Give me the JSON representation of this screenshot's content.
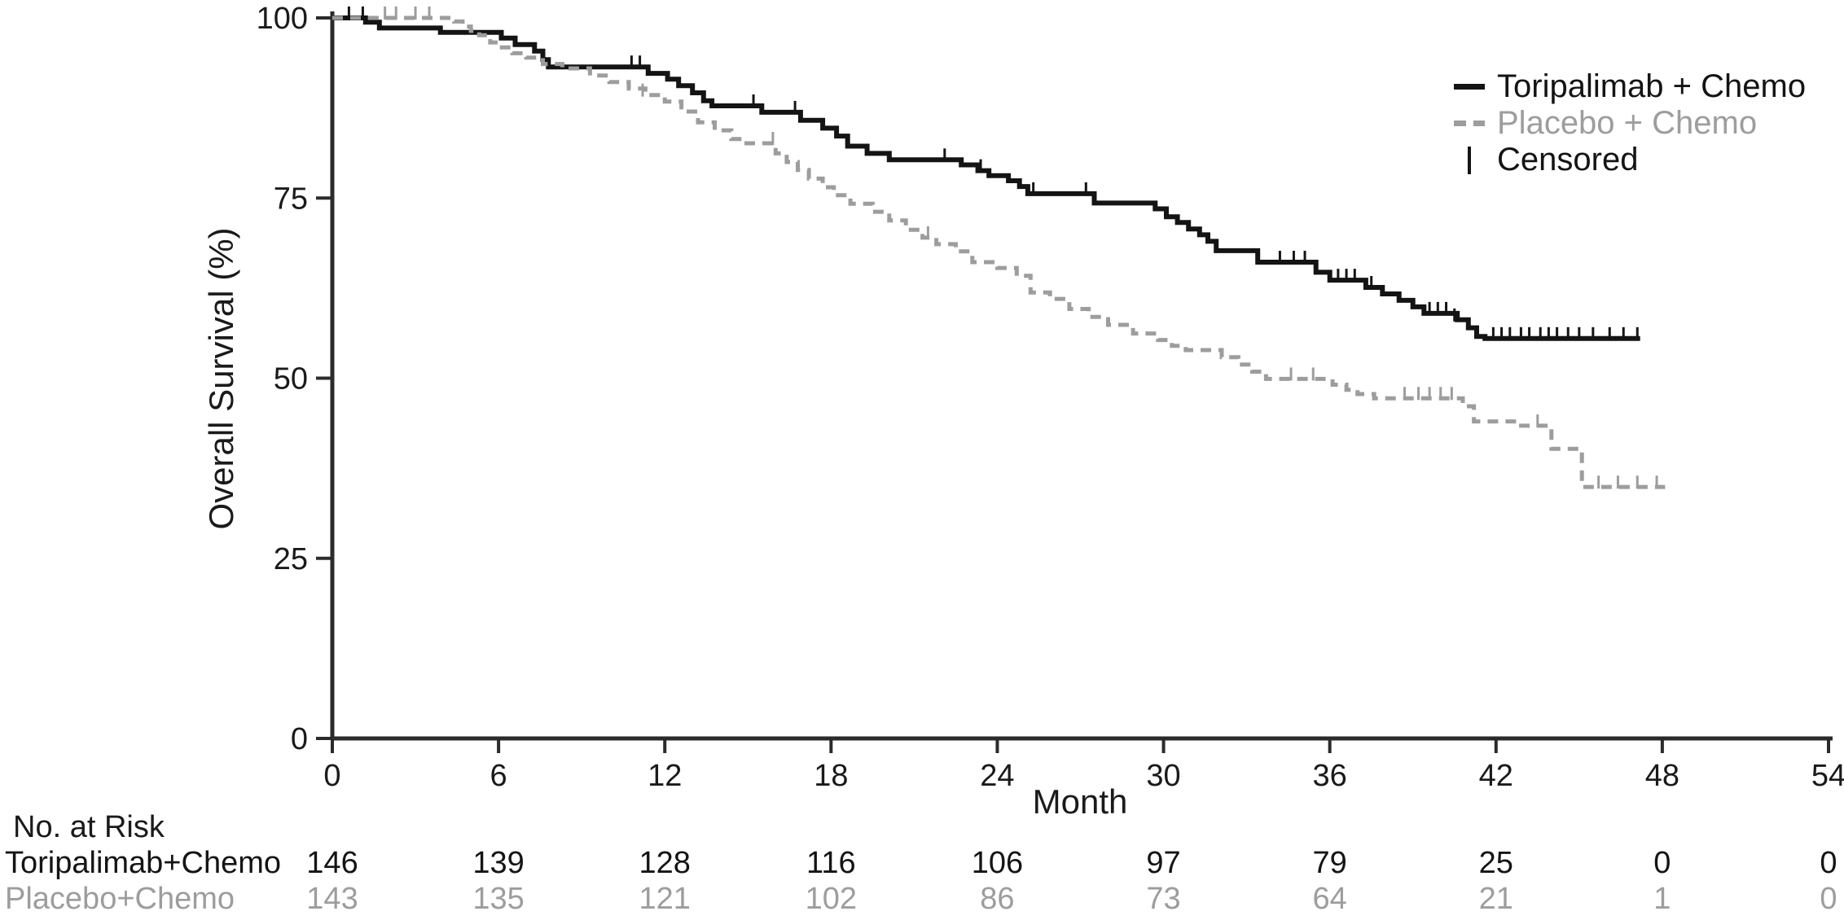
{
  "figure": {
    "xlabel": "Month",
    "ylabel": "Overall Survival (%)"
  },
  "legend": {
    "items": [
      {
        "label": "Toripalimab + Chemo",
        "style": "solid",
        "color": "#141414"
      },
      {
        "label": "Placebo + Chemo",
        "style": "dashed",
        "color": "#9d9d9d"
      },
      {
        "label": "Censored",
        "style": "censor-tick",
        "color": "#141414"
      }
    ]
  },
  "chart_data": {
    "type": "line",
    "subtype": "kaplan-meier-step",
    "title": "",
    "xlabel": "Month",
    "ylabel": "Overall Survival (%)",
    "xlim": [
      0,
      54
    ],
    "ylim": [
      0,
      100
    ],
    "xticks": [
      0,
      6,
      12,
      18,
      24,
      30,
      36,
      42,
      48,
      54
    ],
    "yticks": [
      0,
      25,
      50,
      75,
      100
    ],
    "grid": false,
    "legend_position": "top-right",
    "axis_color": "#2b2b2b",
    "series": [
      {
        "name": "Toripalimab + Chemo",
        "color": "#141414",
        "line_style": "solid",
        "step_points": [
          [
            0,
            100
          ],
          [
            1.2,
            99.4
          ],
          [
            1.7,
            98.6
          ],
          [
            3.9,
            98.0
          ],
          [
            6.1,
            97.2
          ],
          [
            6.6,
            96.3
          ],
          [
            7.3,
            95.4
          ],
          [
            7.6,
            94.2
          ],
          [
            7.8,
            93.2
          ],
          [
            11.4,
            92.3
          ],
          [
            12.1,
            91.5
          ],
          [
            12.5,
            90.6
          ],
          [
            13.0,
            89.6
          ],
          [
            13.4,
            88.5
          ],
          [
            13.7,
            87.8
          ],
          [
            15.5,
            86.9
          ],
          [
            16.9,
            85.8
          ],
          [
            17.7,
            84.7
          ],
          [
            18.2,
            83.6
          ],
          [
            18.6,
            82.2
          ],
          [
            19.3,
            81.2
          ],
          [
            20.1,
            80.3
          ],
          [
            22.7,
            79.6
          ],
          [
            23.3,
            78.8
          ],
          [
            23.7,
            78.1
          ],
          [
            24.4,
            77.4
          ],
          [
            24.8,
            76.6
          ],
          [
            25.1,
            75.6
          ],
          [
            27.5,
            74.3
          ],
          [
            29.7,
            73.5
          ],
          [
            30.1,
            72.4
          ],
          [
            30.5,
            71.6
          ],
          [
            30.9,
            70.7
          ],
          [
            31.3,
            69.9
          ],
          [
            31.6,
            69.0
          ],
          [
            31.9,
            67.7
          ],
          [
            33.4,
            66.1
          ],
          [
            35.5,
            64.7
          ],
          [
            36.0,
            63.6
          ],
          [
            37.3,
            62.6
          ],
          [
            37.9,
            61.7
          ],
          [
            38.5,
            60.8
          ],
          [
            39.0,
            59.9
          ],
          [
            39.4,
            59.0
          ],
          [
            40.6,
            58.1
          ],
          [
            41.0,
            57.0
          ],
          [
            41.3,
            55.8
          ],
          [
            41.6,
            55.5
          ],
          [
            47.2,
            55.5
          ]
        ],
        "censor_marks": [
          [
            0.6,
            100
          ],
          [
            1.1,
            100
          ],
          [
            10.8,
            93.2
          ],
          [
            11.1,
            93.2
          ],
          [
            15.2,
            87.8
          ],
          [
            16.7,
            86.9
          ],
          [
            22.1,
            80.3
          ],
          [
            23.4,
            78.8
          ],
          [
            25.3,
            75.6
          ],
          [
            27.2,
            75.6
          ],
          [
            34.2,
            66.1
          ],
          [
            34.7,
            66.1
          ],
          [
            35.1,
            66.1
          ],
          [
            36.3,
            63.6
          ],
          [
            36.6,
            63.6
          ],
          [
            36.9,
            63.6
          ],
          [
            37.5,
            62.6
          ],
          [
            39.6,
            59.0
          ],
          [
            39.9,
            59.0
          ],
          [
            40.2,
            59.0
          ],
          [
            40.5,
            58.1
          ],
          [
            41.9,
            55.5
          ],
          [
            42.2,
            55.5
          ],
          [
            42.5,
            55.5
          ],
          [
            42.9,
            55.5
          ],
          [
            43.2,
            55.5
          ],
          [
            43.6,
            55.5
          ],
          [
            43.9,
            55.5
          ],
          [
            44.2,
            55.5
          ],
          [
            44.6,
            55.5
          ],
          [
            45.0,
            55.5
          ],
          [
            45.5,
            55.5
          ],
          [
            46.1,
            55.5
          ],
          [
            46.6,
            55.5
          ],
          [
            47.1,
            55.5
          ]
        ]
      },
      {
        "name": "Placebo + Chemo",
        "color": "#9d9d9d",
        "line_style": "dashed",
        "step_points": [
          [
            0,
            100
          ],
          [
            4.4,
            99.5
          ],
          [
            4.7,
            98.8
          ],
          [
            5.0,
            98.2
          ],
          [
            5.3,
            97.6
          ],
          [
            5.7,
            96.6
          ],
          [
            6.0,
            95.9
          ],
          [
            6.5,
            95.1
          ],
          [
            7.0,
            94.5
          ],
          [
            7.6,
            93.6
          ],
          [
            8.3,
            93.0
          ],
          [
            9.3,
            92.0
          ],
          [
            10.0,
            91.1
          ],
          [
            10.7,
            90.2
          ],
          [
            11.3,
            89.3
          ],
          [
            12.0,
            88.4
          ],
          [
            12.6,
            87.0
          ],
          [
            13.2,
            85.5
          ],
          [
            13.8,
            84.4
          ],
          [
            14.4,
            83.2
          ],
          [
            14.8,
            82.6
          ],
          [
            16.0,
            81.2
          ],
          [
            16.4,
            80.0
          ],
          [
            16.8,
            78.9
          ],
          [
            17.2,
            77.7
          ],
          [
            17.7,
            76.5
          ],
          [
            18.1,
            75.4
          ],
          [
            18.7,
            74.2
          ],
          [
            19.5,
            73.1
          ],
          [
            20.1,
            71.9
          ],
          [
            20.7,
            70.6
          ],
          [
            21.3,
            69.5
          ],
          [
            21.8,
            68.6
          ],
          [
            22.5,
            67.6
          ],
          [
            23.1,
            66.1
          ],
          [
            24.0,
            65.3
          ],
          [
            24.7,
            64.2
          ],
          [
            25.2,
            61.9
          ],
          [
            25.9,
            61.0
          ],
          [
            26.6,
            59.6
          ],
          [
            27.3,
            58.5
          ],
          [
            28.0,
            57.4
          ],
          [
            28.9,
            56.2
          ],
          [
            29.8,
            55.3
          ],
          [
            30.3,
            54.5
          ],
          [
            30.8,
            53.9
          ],
          [
            32.1,
            52.9
          ],
          [
            32.7,
            51.9
          ],
          [
            33.2,
            50.9
          ],
          [
            33.7,
            49.9
          ],
          [
            36.1,
            49.1
          ],
          [
            36.6,
            48.4
          ],
          [
            37.0,
            47.8
          ],
          [
            37.6,
            47.2
          ],
          [
            40.8,
            46.1
          ],
          [
            41.2,
            44.0
          ],
          [
            42.8,
            43.4
          ],
          [
            44.0,
            40.2
          ],
          [
            45.1,
            34.9
          ],
          [
            48.1,
            34.9
          ]
        ],
        "censor_marks": [
          [
            1.9,
            100
          ],
          [
            2.3,
            100
          ],
          [
            3.0,
            100
          ],
          [
            3.5,
            100
          ],
          [
            11.2,
            89.3
          ],
          [
            15.9,
            82.6
          ],
          [
            21.5,
            69.5
          ],
          [
            34.6,
            49.9
          ],
          [
            35.4,
            49.9
          ],
          [
            38.7,
            47.2
          ],
          [
            39.2,
            47.2
          ],
          [
            39.6,
            47.2
          ],
          [
            40.0,
            47.2
          ],
          [
            40.4,
            47.2
          ],
          [
            43.5,
            43.4
          ],
          [
            45.7,
            34.9
          ],
          [
            46.4,
            34.9
          ],
          [
            47.1,
            34.9
          ],
          [
            47.8,
            34.9
          ]
        ]
      }
    ]
  },
  "risk_table": {
    "title": "No. at Risk",
    "months": [
      0,
      6,
      12,
      18,
      24,
      30,
      36,
      42,
      48,
      54
    ],
    "rows": [
      {
        "label": "Toripalimab+Chemo",
        "color": "#141414",
        "values": [
          146,
          139,
          128,
          116,
          106,
          97,
          79,
          25,
          0,
          0
        ]
      },
      {
        "label": "Placebo+Chemo",
        "color": "#9d9d9d",
        "values": [
          143,
          135,
          121,
          102,
          86,
          73,
          64,
          21,
          1,
          0
        ]
      }
    ]
  }
}
